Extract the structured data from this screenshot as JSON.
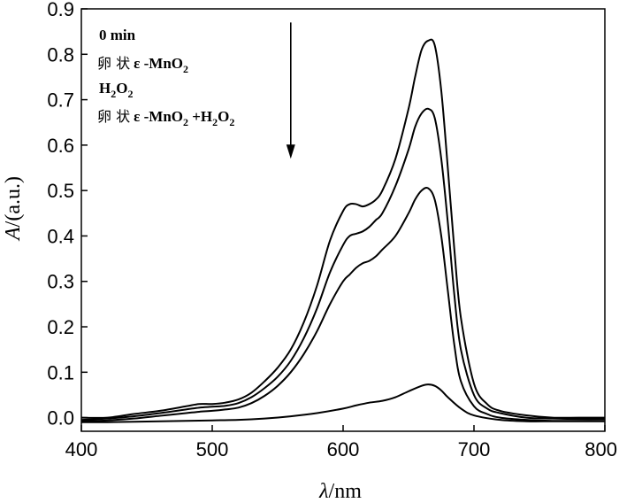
{
  "chart_data": {
    "type": "line",
    "xlabel_symbol": "λ",
    "xlabel_unit": "/nm",
    "ylabel_symbol": "A",
    "ylabel_unit": "/(a.u.)",
    "xlim": [
      400,
      800
    ],
    "ylim": [
      -0.03,
      0.9
    ],
    "x_ticks": [
      400,
      500,
      600,
      700,
      800
    ],
    "y_ticks": [
      0.0,
      0.1,
      0.2,
      0.3,
      0.4,
      0.5,
      0.6,
      0.7,
      0.8,
      0.9
    ],
    "grid": false,
    "legend": {
      "placement": "top-left",
      "line1": "0 min",
      "line2_cjk": "卵 状",
      "line2_rest": "ε -MnO",
      "line2_sub": "2",
      "line3": "H",
      "line3_sub1": "2",
      "line3_mid": "O",
      "line3_sub2": "2",
      "line4_cjk": "卵 状",
      "line4_rest": "ε -MnO",
      "line4_sub1": "2",
      "line4_plus": " +H",
      "line4_sub2": "2",
      "line4_o": "O",
      "line4_sub3": "2"
    },
    "arrow": {
      "x": 560,
      "y_start": 0.87,
      "y_end": 0.57,
      "direction": "down"
    },
    "series": [
      {
        "x": [
          400,
          420,
          440,
          460,
          480,
          490,
          500,
          510,
          520,
          530,
          540,
          550,
          560,
          570,
          580,
          590,
          600,
          605,
          610,
          615,
          620,
          625,
          630,
          640,
          650,
          655,
          660,
          665,
          670,
          675,
          680,
          685,
          690,
          700,
          710,
          720,
          740,
          760,
          780,
          800
        ],
        "values": [
          0.0,
          0.0,
          0.008,
          0.015,
          0.025,
          0.03,
          0.03,
          0.033,
          0.04,
          0.055,
          0.08,
          0.11,
          0.15,
          0.21,
          0.29,
          0.39,
          0.455,
          0.47,
          0.47,
          0.465,
          0.47,
          0.48,
          0.5,
          0.57,
          0.68,
          0.75,
          0.81,
          0.83,
          0.82,
          0.72,
          0.55,
          0.37,
          0.22,
          0.075,
          0.03,
          0.015,
          0.005,
          0.0,
          0.0,
          0.0
        ]
      },
      {
        "x": [
          400,
          420,
          440,
          460,
          480,
          490,
          500,
          510,
          520,
          530,
          540,
          550,
          560,
          570,
          580,
          590,
          600,
          605,
          610,
          615,
          620,
          625,
          630,
          640,
          650,
          655,
          660,
          665,
          670,
          675,
          680,
          685,
          690,
          700,
          710,
          720,
          740,
          760,
          780,
          800
        ],
        "values": [
          -0.005,
          -0.002,
          0.003,
          0.01,
          0.018,
          0.022,
          0.024,
          0.026,
          0.032,
          0.045,
          0.065,
          0.09,
          0.125,
          0.175,
          0.24,
          0.32,
          0.38,
          0.4,
          0.405,
          0.41,
          0.42,
          0.435,
          0.45,
          0.51,
          0.59,
          0.64,
          0.67,
          0.68,
          0.66,
          0.57,
          0.43,
          0.27,
          0.15,
          0.05,
          0.02,
          0.01,
          0.0,
          -0.002,
          -0.003,
          -0.003
        ]
      },
      {
        "x": [
          400,
          420,
          440,
          460,
          480,
          490,
          500,
          510,
          520,
          530,
          540,
          550,
          560,
          570,
          580,
          590,
          600,
          605,
          610,
          615,
          620,
          625,
          630,
          640,
          650,
          655,
          660,
          665,
          670,
          675,
          680,
          685,
          690,
          700,
          710,
          720,
          740,
          760,
          780,
          800
        ],
        "values": [
          -0.008,
          -0.006,
          -0.002,
          0.004,
          0.01,
          0.013,
          0.015,
          0.018,
          0.022,
          0.032,
          0.048,
          0.07,
          0.1,
          0.14,
          0.19,
          0.25,
          0.3,
          0.315,
          0.33,
          0.34,
          0.345,
          0.355,
          0.37,
          0.4,
          0.45,
          0.48,
          0.5,
          0.505,
          0.48,
          0.4,
          0.28,
          0.16,
          0.08,
          0.025,
          0.008,
          0.0,
          -0.005,
          -0.007,
          -0.007,
          -0.007
        ]
      },
      {
        "x": [
          400,
          420,
          440,
          460,
          480,
          500,
          520,
          540,
          560,
          580,
          600,
          610,
          620,
          630,
          640,
          650,
          660,
          665,
          670,
          675,
          680,
          690,
          700,
          720,
          740,
          760,
          780,
          800
        ],
        "values": [
          -0.01,
          -0.01,
          -0.009,
          -0.008,
          -0.007,
          -0.006,
          -0.005,
          -0.002,
          0.003,
          0.01,
          0.02,
          0.027,
          0.033,
          0.037,
          0.045,
          0.058,
          0.07,
          0.073,
          0.07,
          0.06,
          0.045,
          0.02,
          0.005,
          -0.005,
          -0.008,
          -0.008,
          -0.008,
          -0.008
        ]
      }
    ]
  }
}
